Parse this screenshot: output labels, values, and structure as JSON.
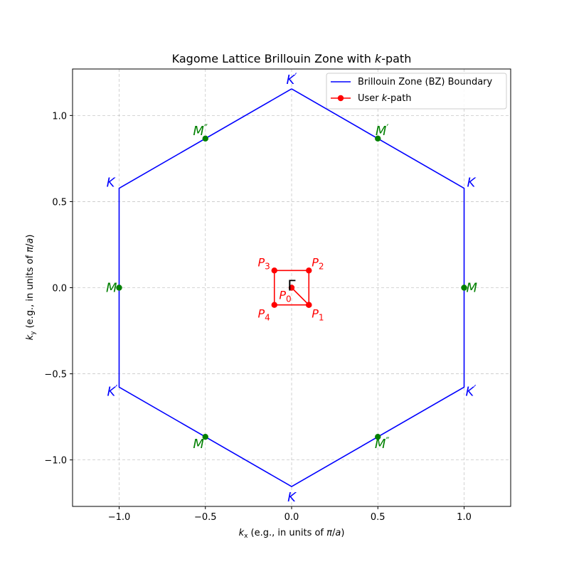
{
  "chart_data": {
    "type": "line",
    "title": "Kagome Lattice Brillouin Zone with k-path",
    "title_parts": [
      "Kagome Lattice Brillouin Zone with ",
      "k",
      "-path"
    ],
    "xlabel": "k_x (e.g., in units of π/a)",
    "xlabel_parts": [
      "k",
      "x",
      " (e.g., in units of ",
      "π",
      "/",
      "a",
      ")"
    ],
    "ylabel": "k_y (e.g., in units of π/a)",
    "ylabel_parts": [
      "k",
      "y",
      " (e.g., in units of ",
      "π",
      "/",
      "a",
      ")"
    ],
    "xlim": [
      -1.27,
      1.27
    ],
    "ylim": [
      -1.27,
      1.27
    ],
    "xticks": [
      -1.0,
      -0.5,
      0.0,
      0.5,
      1.0
    ],
    "xtick_labels": [
      "−1.0",
      "−0.5",
      "0.0",
      "0.5",
      "1.0"
    ],
    "yticks": [
      -1.0,
      -0.5,
      0.0,
      0.5,
      1.0
    ],
    "ytick_labels": [
      "−1.0",
      "−0.5",
      "0.0",
      "0.5",
      "1.0"
    ],
    "grid": true,
    "legend_position": "upper right",
    "series": [
      {
        "name": "Brillouin Zone (BZ) Boundary",
        "color": "#0000ff",
        "marker": "none",
        "x": [
          0.0,
          1.0,
          1.0,
          0.0,
          -1.0,
          -1.0,
          0.0
        ],
        "y": [
          1.1547,
          0.5774,
          -0.5774,
          -1.1547,
          -0.5774,
          0.5774,
          1.1547
        ]
      },
      {
        "name": "User k-path",
        "name_parts": [
          "User ",
          "k",
          "-path"
        ],
        "color": "#ff0000",
        "marker": "circle",
        "x": [
          0.0,
          0.1,
          0.1,
          -0.1,
          -0.1,
          0.1
        ],
        "y": [
          0.0,
          -0.1,
          0.1,
          0.1,
          -0.1,
          -0.1
        ]
      }
    ],
    "m_points": {
      "color": "#008000",
      "x": [
        1.0,
        0.5,
        -0.5,
        -1.0,
        -0.5,
        0.5
      ],
      "y": [
        0.0,
        0.866,
        0.866,
        0.0,
        -0.866,
        -0.866
      ]
    },
    "high_symmetry_labels": [
      {
        "letter": "K",
        "prime": "′",
        "x": 0.0,
        "y": 1.1547,
        "color": "#0000ff",
        "anchor": "middle",
        "dy": -7
      },
      {
        "letter": "K",
        "prime": "",
        "x": -1.0,
        "y": 0.5774,
        "color": "#0000ff",
        "anchor": "end",
        "dx": -6,
        "dy": -2
      },
      {
        "letter": "K",
        "prime": "",
        "x": 1.0,
        "y": 0.5774,
        "color": "#0000ff",
        "anchor": "start",
        "dx": 4,
        "dy": -2
      },
      {
        "letter": "K",
        "prime": "′",
        "x": -1.0,
        "y": -0.5774,
        "color": "#0000ff",
        "anchor": "end",
        "dx": -2,
        "dy": 12
      },
      {
        "letter": "K",
        "prime": "′",
        "x": 1.0,
        "y": -0.5774,
        "color": "#0000ff",
        "anchor": "start",
        "dx": 2,
        "dy": 12
      },
      {
        "letter": "K",
        "prime": "",
        "x": 0.0,
        "y": -1.1547,
        "color": "#0000ff",
        "anchor": "middle",
        "dy": 21
      },
      {
        "letter": "M",
        "prime": "″",
        "x": -0.5,
        "y": 0.866,
        "color": "#008000",
        "anchor": "middle",
        "dx": -7,
        "dy": -5
      },
      {
        "letter": "M",
        "prime": "′",
        "x": 0.5,
        "y": 0.866,
        "color": "#008000",
        "anchor": "middle",
        "dx": 6,
        "dy": -5
      },
      {
        "letter": "M",
        "prime": "",
        "x": -1.0,
        "y": 0.0,
        "color": "#008000",
        "anchor": "end",
        "dx": -3,
        "dy": 6
      },
      {
        "letter": "M",
        "prime": "",
        "x": 1.0,
        "y": 0.0,
        "color": "#008000",
        "anchor": "start",
        "dx": 3,
        "dy": 6
      },
      {
        "letter": "M",
        "prime": "″",
        "x": -0.5,
        "y": -0.866,
        "color": "#008000",
        "anchor": "middle",
        "dx": -7,
        "dy": 16
      },
      {
        "letter": "M",
        "prime": "″",
        "x": 0.5,
        "y": -0.866,
        "color": "#008000",
        "anchor": "middle",
        "dx": 6,
        "dy": 16
      }
    ],
    "path_point_labels": [
      {
        "letter": "P",
        "sub": "0",
        "x": 0.0,
        "y": 0.0,
        "anchor": "middle",
        "dx": -9,
        "dy": 16
      },
      {
        "letter": "P",
        "sub": "1",
        "x": 0.1,
        "y": -0.1,
        "anchor": "start",
        "dx": 4,
        "dy": 18
      },
      {
        "letter": "P",
        "sub": "2",
        "x": 0.1,
        "y": 0.1,
        "anchor": "start",
        "dx": 4,
        "dy": -6
      },
      {
        "letter": "P",
        "sub": "3",
        "x": -0.1,
        "y": 0.1,
        "anchor": "end",
        "dx": -6,
        "dy": -6
      },
      {
        "letter": "P",
        "sub": "4",
        "x": -0.1,
        "y": -0.1,
        "anchor": "end",
        "dx": -6,
        "dy": 18
      }
    ],
    "gamma_label": {
      "text": "Γ",
      "x": 0.0,
      "y": 0.0
    }
  }
}
